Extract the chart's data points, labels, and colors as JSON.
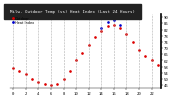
{
  "title": "Milw. Outdoor Temp (vs) Heat Index (Last 24 Hours)",
  "legend_temp": "Outdoor",
  "legend_hi": "Heat Index",
  "hours": [
    0,
    1,
    2,
    3,
    4,
    5,
    6,
    7,
    8,
    9,
    10,
    11,
    12,
    13,
    14,
    15,
    16,
    17,
    18,
    19,
    20,
    21,
    22,
    23
  ],
  "temperature": [
    57,
    55,
    53,
    50,
    48,
    47,
    46,
    47,
    50,
    55,
    62,
    67,
    72,
    77,
    81,
    84,
    85,
    83,
    79,
    74,
    69,
    65,
    62,
    59
  ],
  "heat_index": [
    null,
    null,
    null,
    null,
    null,
    null,
    null,
    null,
    null,
    null,
    null,
    null,
    null,
    null,
    83,
    87,
    88,
    85,
    null,
    null,
    null,
    null,
    null,
    null
  ],
  "temp_color": "#dd0000",
  "hi_color": "#0000cc",
  "bg_color": "#ffffff",
  "title_bg": "#222222",
  "title_color": "#ffffff",
  "grid_color": "#999999",
  "right_border_color": "#000000",
  "ylim": [
    44,
    92
  ],
  "ytick_vals": [
    46,
    50,
    54,
    58,
    62,
    66,
    70,
    74,
    78,
    82,
    86,
    90
  ],
  "ytick_labels": [
    "46",
    "50",
    "54",
    "58",
    "62",
    "66",
    "70",
    "74",
    "78",
    "82",
    "86",
    "90"
  ],
  "xtick_vals": [
    0,
    2,
    4,
    6,
    8,
    10,
    12,
    14,
    16,
    18,
    20,
    22
  ],
  "xtick_labels": [
    "0",
    "2",
    "4",
    "6",
    "8",
    "10",
    "12",
    "14",
    "16",
    "18",
    "20",
    "22"
  ],
  "markersize": 1.8,
  "title_fontsize": 3.0,
  "tick_fontsize": 2.8,
  "legend_fontsize": 2.5
}
